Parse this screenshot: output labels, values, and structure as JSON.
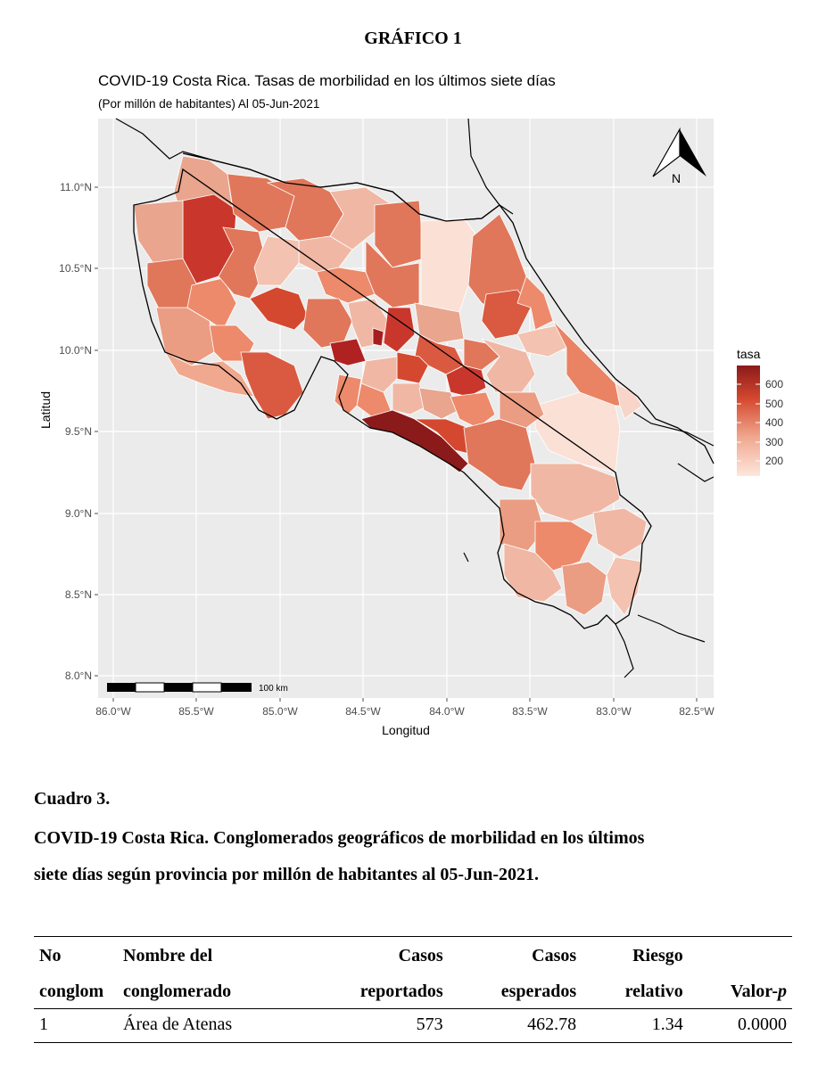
{
  "figure_title": "GRÁFICO 1",
  "map": {
    "title": "COVID-19 Costa Rica. Tasas de morbilidad en los últimos siete días",
    "subtitle": "(Por millón de habitantes) Al 05-Jun-2021",
    "xlabel": "Longitud",
    "ylabel": "Latitud",
    "x_ticks": [
      "86.0°W",
      "85.5°W",
      "85.0°W",
      "84.5°W",
      "84.0°W",
      "83.5°W",
      "83.0°W",
      "82.5°W"
    ],
    "y_ticks": [
      "11.0°N",
      "10.5°N",
      "10.0°N",
      "9.5°N",
      "9.0°N",
      "8.5°N",
      "8.0°N"
    ],
    "legend_title": "tasa",
    "legend_ticks": [
      "600",
      "500",
      "400",
      "300",
      "200"
    ],
    "scale_bar_label": "100 km",
    "north_label": "N",
    "colors": {
      "low": "#fbe5dc",
      "mid": "#e98363",
      "high": "#8b1a1a",
      "panel": "#ebebeb"
    }
  },
  "chart_data": {
    "type": "heatmap",
    "title": "COVID-19 Costa Rica. Tasas de morbilidad en los últimos siete días",
    "subtitle": "(Por millón de habitantes) Al 05-Jun-2021",
    "xlabel": "Longitud",
    "ylabel": "Latitud",
    "xlim": [
      -86.1,
      -82.35
    ],
    "ylim": [
      7.93,
      11.35
    ],
    "legend_title": "tasa",
    "legend_range": [
      150,
      700
    ],
    "legend_ticks": [
      600,
      500,
      400,
      300,
      200
    ],
    "grid": true,
    "legend_position": "right"
  },
  "caption": {
    "number": "Cuadro 3.",
    "line1": "COVID-19 Costa Rica. Conglomerados geográficos de morbilidad en los últimos",
    "line2": "siete días según provincia por millón de habitantes al 05-Jun-2021."
  },
  "table": {
    "headers_top": [
      "No",
      "Nombre del",
      "Casos",
      "Casos",
      "Riesgo",
      ""
    ],
    "headers_bottom": [
      "conglom",
      "conglomerado",
      "reportados",
      "esperados",
      "relativo",
      "Valor-"
    ],
    "header_p": "p",
    "rows": [
      {
        "no": "1",
        "name": "Área de Atenas",
        "reported": "573",
        "expected": "462.78",
        "rr": "1.34",
        "p": "0.0000"
      }
    ]
  }
}
